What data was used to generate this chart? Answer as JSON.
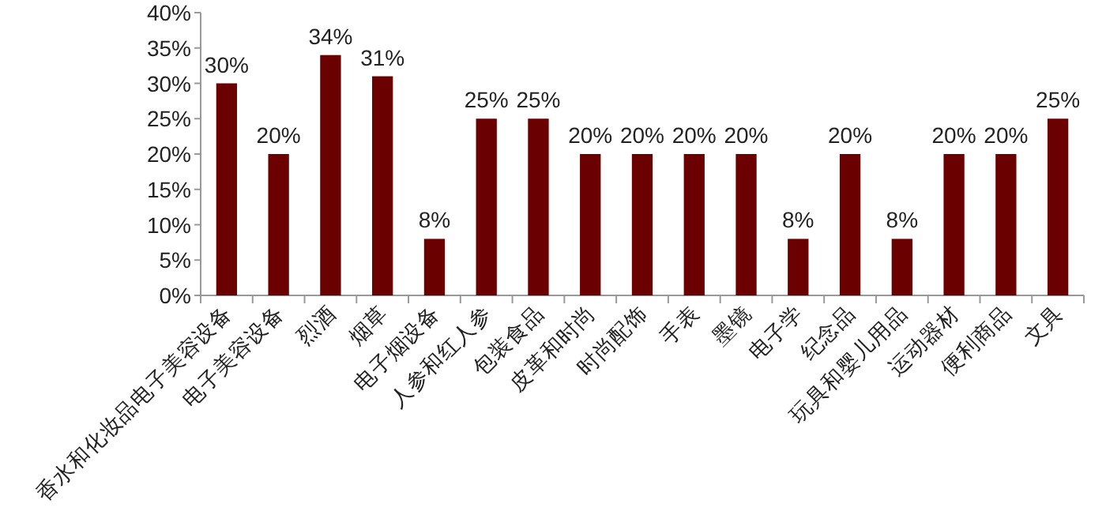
{
  "chart_data": {
    "type": "bar",
    "categories": [
      "香水和化妆品电子美容设备",
      "电子美容设备",
      "烈酒",
      "烟草",
      "电子烟设备",
      "人参和红人参",
      "包装食品",
      "皮革和时尚",
      "时尚配饰",
      "手表",
      "墨镜",
      "电子学",
      "纪念品",
      "玩具和婴儿用品",
      "运动器材",
      "便利商品",
      "文具"
    ],
    "values": [
      30,
      20,
      34,
      31,
      8,
      25,
      25,
      20,
      20,
      20,
      20,
      8,
      20,
      8,
      20,
      20,
      25
    ],
    "value_labels": [
      "30%",
      "20%",
      "34%",
      "31%",
      "8%",
      "25%",
      "25%",
      "20%",
      "20%",
      "20%",
      "20%",
      "8%",
      "20%",
      "8%",
      "20%",
      "20%",
      "25%"
    ],
    "color": "#6b0000",
    "ylim": [
      0,
      40
    ],
    "yticks": [
      {
        "value": 0,
        "label": "0%"
      },
      {
        "value": 5,
        "label": "5%"
      },
      {
        "value": 10,
        "label": "10%"
      },
      {
        "value": 15,
        "label": "15%"
      },
      {
        "value": 20,
        "label": "20%"
      },
      {
        "value": 25,
        "label": "25%"
      },
      {
        "value": 30,
        "label": "30%"
      },
      {
        "value": 35,
        "label": "35%"
      },
      {
        "value": 40,
        "label": "40%"
      }
    ],
    "grid": false
  }
}
